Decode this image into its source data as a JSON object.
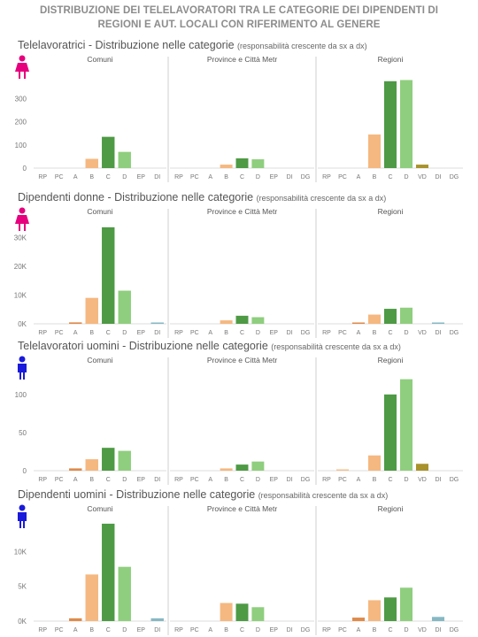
{
  "title": {
    "line1": "DISTRIBUZIONE DEI TELELAVORATORI TRA LE CATEGORIE DEI DIPENDENTI DI",
    "line2": "REGIONI E AUT. LOCALI CON RIFERIMENTO AL GENERE"
  },
  "colors": {
    "female_icon": "#e6007e",
    "male_icon": "#1a1adb",
    "categories": {
      "RP": "#f5c08a",
      "PC": "#f5c08a",
      "A": "#e08a4a",
      "B": "#f5b880",
      "C": "#4e9a45",
      "D": "#8fce7e",
      "EP": "#9ccfa0",
      "DI": "#86b8c4",
      "VD": "#a8922c",
      "DG": "#6aa6b4"
    }
  },
  "chart_data": [
    {
      "type": "bar",
      "icon": "female-icon",
      "title": "Telelavoratrici - Distribuzione nelle categorie",
      "subtitle": "(responsabilità crescente da sx a dx)",
      "groups": [
        {
          "name": "Comuni",
          "categories": [
            "RP",
            "PC",
            "A",
            "B",
            "C",
            "D",
            "EP",
            "DI"
          ],
          "values": [
            0,
            0,
            0,
            40,
            135,
            70,
            0,
            0
          ]
        },
        {
          "name": "Province e Città Metr",
          "categories": [
            "RP",
            "PC",
            "A",
            "B",
            "C",
            "D",
            "EP",
            "DI",
            "DG"
          ],
          "values": [
            0,
            0,
            0,
            15,
            42,
            38,
            0,
            0,
            0
          ]
        },
        {
          "name": "Regioni",
          "categories": [
            "RP",
            "PC",
            "A",
            "B",
            "C",
            "D",
            "VD",
            "DI",
            "DG"
          ],
          "values": [
            0,
            0,
            0,
            145,
            375,
            380,
            15,
            0,
            0
          ]
        }
      ],
      "yticks": [
        "0",
        "100",
        "200",
        "300"
      ],
      "ylim": [
        0,
        420
      ]
    },
    {
      "type": "bar",
      "icon": "female-icon",
      "title": "Dipendenti donne - Distribuzione nelle categorie",
      "subtitle": "(responsabilità crescente da sx a dx)",
      "groups": [
        {
          "name": "Comuni",
          "categories": [
            "RP",
            "PC",
            "A",
            "B",
            "C",
            "D",
            "EP",
            "DI"
          ],
          "values": [
            0,
            0,
            500,
            9000,
            33500,
            11500,
            0,
            200
          ]
        },
        {
          "name": "Province e Città Metr",
          "categories": [
            "RP",
            "PC",
            "A",
            "B",
            "C",
            "D",
            "EP",
            "DI",
            "DG"
          ],
          "values": [
            0,
            0,
            0,
            1200,
            2800,
            2300,
            0,
            0,
            0
          ]
        },
        {
          "name": "Regioni",
          "categories": [
            "RP",
            "PC",
            "A",
            "B",
            "C",
            "D",
            "VD",
            "DI",
            "DG"
          ],
          "values": [
            0,
            0,
            200,
            3200,
            5200,
            5600,
            0,
            200,
            0
          ]
        }
      ],
      "yticks": [
        "0K",
        "10K",
        "20K",
        "30K"
      ],
      "ylim": [
        0,
        35000
      ]
    },
    {
      "type": "bar",
      "icon": "male-icon",
      "title": "Telelavoratori uomini - Distribuzione nelle categorie",
      "subtitle": "(responsabilità crescente da sx a dx)",
      "groups": [
        {
          "name": "Comuni",
          "categories": [
            "RP",
            "PC",
            "A",
            "B",
            "C",
            "D",
            "EP",
            "DI"
          ],
          "values": [
            0,
            0,
            3,
            15,
            30,
            26,
            0,
            0
          ]
        },
        {
          "name": "Province e Città Metr",
          "categories": [
            "RP",
            "PC",
            "A",
            "B",
            "C",
            "D",
            "EP",
            "DI",
            "DG"
          ],
          "values": [
            0,
            0,
            0,
            3,
            8,
            12,
            0,
            0,
            0
          ]
        },
        {
          "name": "Regioni",
          "categories": [
            "RP",
            "PC",
            "A",
            "B",
            "C",
            "D",
            "VD",
            "DI",
            "DG"
          ],
          "values": [
            0,
            1,
            0,
            20,
            100,
            120,
            9,
            0,
            0
          ]
        }
      ],
      "yticks": [
        "0",
        "50",
        "100"
      ],
      "ylim": [
        0,
        130
      ]
    },
    {
      "type": "bar",
      "icon": "male-icon",
      "title": "Dipendenti uomini - Distribuzione nelle categorie",
      "subtitle": "(responsabilità crescente da sx a dx)",
      "groups": [
        {
          "name": "Comuni",
          "categories": [
            "RP",
            "PC",
            "A",
            "B",
            "C",
            "D",
            "EP",
            "DI"
          ],
          "values": [
            0,
            0,
            400,
            6700,
            14000,
            7800,
            0,
            400
          ]
        },
        {
          "name": "Province e Città Metr",
          "categories": [
            "RP",
            "PC",
            "A",
            "B",
            "C",
            "D",
            "EP",
            "DI",
            "DG"
          ],
          "values": [
            0,
            0,
            0,
            2600,
            2500,
            2000,
            0,
            0,
            0
          ]
        },
        {
          "name": "Regioni",
          "categories": [
            "RP",
            "PC",
            "A",
            "B",
            "C",
            "D",
            "VD",
            "DI",
            "DG"
          ],
          "values": [
            0,
            0,
            500,
            3000,
            3400,
            4800,
            0,
            600,
            0
          ]
        }
      ],
      "yticks": [
        "0K",
        "5K",
        "10K"
      ],
      "ylim": [
        0,
        14500
      ]
    }
  ]
}
